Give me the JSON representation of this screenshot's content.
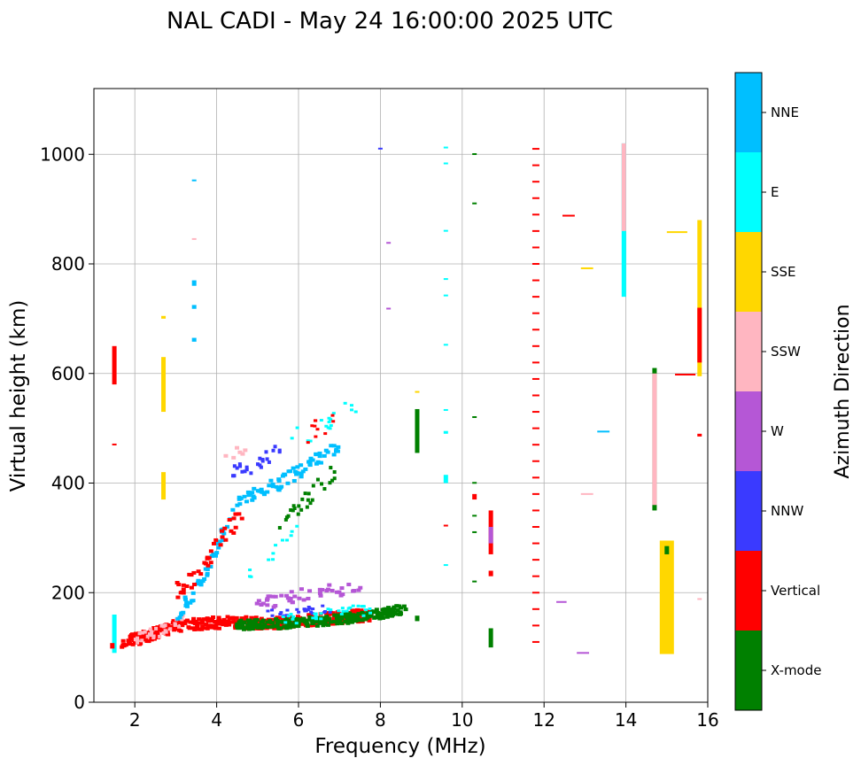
{
  "chart_data": {
    "type": "scatter",
    "title": "NAL CADI - May 24 16:00:00 2025 UTC",
    "xlabel": "Frequency (MHz)",
    "ylabel": "Virtual height (km)",
    "xlim": [
      1,
      16
    ],
    "ylim": [
      0,
      1120
    ],
    "xticks": [
      "2",
      "4",
      "6",
      "8",
      "10",
      "12",
      "14",
      "16"
    ],
    "yticks": [
      "0",
      "200",
      "400",
      "600",
      "800",
      "1000"
    ],
    "grid": true,
    "colorbar": {
      "label": "Azimuth Direction",
      "categories": [
        {
          "name": "X-mode",
          "color": "#008000"
        },
        {
          "name": "Vertical",
          "color": "#ff0000"
        },
        {
          "name": "NNW",
          "color": "#3a3aff"
        },
        {
          "name": "W",
          "color": "#b557d6"
        },
        {
          "name": "SSW",
          "color": "#ffb6c1"
        },
        {
          "name": "SSE",
          "color": "#ffd700"
        },
        {
          "name": "E",
          "color": "#00ffff"
        },
        {
          "name": "NNE",
          "color": "#00bfff"
        }
      ]
    },
    "segments": [
      {
        "f": 1.5,
        "h0": 580,
        "h1": 650,
        "dir": "Vertical"
      },
      {
        "f": 1.5,
        "h0": 470,
        "h1": 472,
        "dir": "Vertical"
      },
      {
        "f": 1.5,
        "h0": 90,
        "h1": 160,
        "dir": "E"
      },
      {
        "f": 1.45,
        "h0": 98,
        "h1": 108,
        "dir": "Vertical"
      },
      {
        "f": 2.7,
        "h0": 530,
        "h1": 630,
        "dir": "SSE"
      },
      {
        "f": 2.7,
        "h0": 370,
        "h1": 420,
        "dir": "SSE"
      },
      {
        "f": 2.7,
        "h0": 700,
        "h1": 705,
        "dir": "SSE"
      },
      {
        "f": 3.45,
        "h0": 952,
        "h1": 954,
        "dir": "NNE"
      },
      {
        "f": 3.45,
        "h0": 845,
        "h1": 847,
        "dir": "SSW"
      },
      {
        "f": 3.45,
        "h0": 760,
        "h1": 770,
        "dir": "NNE"
      },
      {
        "f": 3.45,
        "h0": 718,
        "h1": 725,
        "dir": "NNE"
      },
      {
        "f": 3.45,
        "h0": 658,
        "h1": 665,
        "dir": "NNE"
      },
      {
        "f": 8.9,
        "h0": 455,
        "h1": 535,
        "dir": "X-mode"
      },
      {
        "f": 8.9,
        "h0": 565,
        "h1": 568,
        "dir": "SSE"
      },
      {
        "f": 8.9,
        "h0": 148,
        "h1": 158,
        "dir": "X-mode"
      },
      {
        "f": 8.2,
        "h0": 838,
        "h1": 840,
        "dir": "W"
      },
      {
        "f": 8.2,
        "h0": 718,
        "h1": 720,
        "dir": "W"
      },
      {
        "f": 8.0,
        "h0": 1010,
        "h1": 1012,
        "dir": "NNW"
      },
      {
        "f": 9.6,
        "h0": 1012,
        "h1": 1014,
        "dir": "E"
      },
      {
        "f": 9.6,
        "h0": 983,
        "h1": 985,
        "dir": "E"
      },
      {
        "f": 9.6,
        "h0": 860,
        "h1": 862,
        "dir": "E"
      },
      {
        "f": 9.6,
        "h0": 772,
        "h1": 774,
        "dir": "E"
      },
      {
        "f": 9.6,
        "h0": 742,
        "h1": 744,
        "dir": "E"
      },
      {
        "f": 9.6,
        "h0": 652,
        "h1": 654,
        "dir": "E"
      },
      {
        "f": 9.6,
        "h0": 533,
        "h1": 535,
        "dir": "E"
      },
      {
        "f": 9.6,
        "h0": 490,
        "h1": 495,
        "dir": "E"
      },
      {
        "f": 9.6,
        "h0": 400,
        "h1": 415,
        "dir": "E"
      },
      {
        "f": 9.6,
        "h0": 322,
        "h1": 324,
        "dir": "Vertical"
      },
      {
        "f": 9.6,
        "h0": 250,
        "h1": 252,
        "dir": "E"
      },
      {
        "f": 10.3,
        "h0": 1000,
        "h1": 1002,
        "dir": "X-mode"
      },
      {
        "f": 10.3,
        "h0": 910,
        "h1": 912,
        "dir": "X-mode"
      },
      {
        "f": 10.3,
        "h0": 520,
        "h1": 522,
        "dir": "X-mode"
      },
      {
        "f": 10.3,
        "h0": 400,
        "h1": 402,
        "dir": "X-mode"
      },
      {
        "f": 10.3,
        "h0": 370,
        "h1": 380,
        "dir": "Vertical"
      },
      {
        "f": 10.3,
        "h0": 340,
        "h1": 342,
        "dir": "X-mode"
      },
      {
        "f": 10.3,
        "h0": 310,
        "h1": 312,
        "dir": "X-mode"
      },
      {
        "f": 10.3,
        "h0": 220,
        "h1": 222,
        "dir": "X-mode"
      },
      {
        "f": 10.7,
        "h0": 270,
        "h1": 350,
        "dir": "Vertical"
      },
      {
        "f": 10.7,
        "h0": 290,
        "h1": 320,
        "dir": "W"
      },
      {
        "f": 10.7,
        "h0": 230,
        "h1": 240,
        "dir": "Vertical"
      },
      {
        "f": 10.7,
        "h0": 100,
        "h1": 135,
        "dir": "X-mode"
      },
      {
        "f": 11.8,
        "h0": 110,
        "h1": 1015,
        "dir": "Vertical",
        "dashed": true
      },
      {
        "f": 13.95,
        "h0": 740,
        "h1": 1020,
        "dir": "E"
      },
      {
        "f": 13.95,
        "h0": 860,
        "h1": 1020,
        "dir": "SSW"
      },
      {
        "f": 14.7,
        "h0": 350,
        "h1": 610,
        "dir": "X-mode"
      },
      {
        "f": 14.7,
        "h0": 360,
        "h1": 600,
        "dir": "SSW"
      },
      {
        "f": 15.0,
        "h0": 88,
        "h1": 295,
        "dir": "SSE",
        "wide": true
      },
      {
        "f": 15.0,
        "h0": 270,
        "h1": 285,
        "dir": "X-mode"
      },
      {
        "f": 15.8,
        "h0": 595,
        "h1": 880,
        "dir": "SSE"
      },
      {
        "f": 15.8,
        "h0": 485,
        "h1": 490,
        "dir": "Vertical"
      },
      {
        "f": 15.8,
        "h0": 620,
        "h1": 720,
        "dir": "Vertical"
      },
      {
        "f": 15.8,
        "h0": 188,
        "h1": 190,
        "dir": "SSW"
      }
    ],
    "hlines": [
      {
        "f0": 12.45,
        "f1": 12.75,
        "h": 888,
        "dir": "Vertical"
      },
      {
        "f0": 12.9,
        "f1": 13.2,
        "h": 792,
        "dir": "SSE"
      },
      {
        "f0": 15.0,
        "f1": 15.5,
        "h": 858,
        "dir": "SSE"
      },
      {
        "f0": 15.2,
        "f1": 15.7,
        "h": 598,
        "dir": "Vertical"
      },
      {
        "f0": 13.3,
        "f1": 13.6,
        "h": 494,
        "dir": "NNE"
      },
      {
        "f0": 12.3,
        "f1": 12.55,
        "h": 183,
        "dir": "W"
      },
      {
        "f0": 12.8,
        "f1": 13.1,
        "h": 90,
        "dir": "W"
      },
      {
        "f0": 12.9,
        "f1": 13.2,
        "h": 380,
        "dir": "SSW"
      }
    ]
  }
}
